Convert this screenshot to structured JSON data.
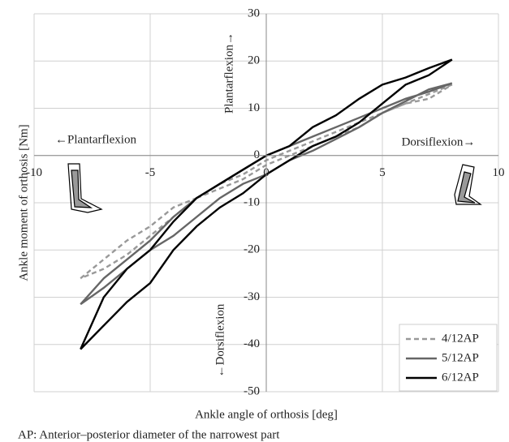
{
  "chart_data": {
    "type": "line",
    "x_label": "Ankle angle of orthosis [deg]",
    "y_label": "Ankle moment of orthosis [Nm]",
    "footnote": "AP: Anterior–posterior diameter of the narrowest part",
    "annotations": [
      "Plantarflexion→",
      "←Plantarflexion",
      "Dorsiflexion→",
      "←Dorsiflexion"
    ],
    "xlim": [
      -10,
      10
    ],
    "xticks": [
      -10,
      -5,
      0,
      5,
      10
    ],
    "ylim": [
      -50,
      30
    ],
    "yticks": [
      -50,
      -40,
      -30,
      -20,
      -10,
      0,
      10,
      20,
      30
    ],
    "grid": true,
    "legend": "lower right",
    "series": [
      {
        "name": "4/12AP",
        "color": "#999999",
        "dashed": true,
        "x": [
          -8,
          -7,
          -6,
          -5,
          -4,
          -3,
          -2,
          -1,
          0,
          1,
          2,
          3,
          4,
          5,
          6,
          7,
          8,
          7,
          6,
          5,
          4,
          3,
          2,
          1,
          0,
          -1,
          -2,
          -3,
          -4,
          -5,
          -6,
          -7,
          -8
        ],
        "values": [
          -26,
          -22,
          -18,
          -15,
          -11,
          -9,
          -6,
          -4,
          -1,
          1,
          3,
          5,
          7,
          9,
          11,
          12,
          15,
          13,
          11,
          9,
          6,
          4,
          2,
          0,
          -2,
          -5,
          -7,
          -9,
          -13,
          -17,
          -21,
          -24,
          -26
        ]
      },
      {
        "name": "5/12AP",
        "color": "#666666",
        "dashed": false,
        "x": [
          -8,
          -7,
          -6,
          -5,
          -4,
          -3,
          -2,
          -1,
          0,
          1,
          2,
          3,
          4,
          5,
          6,
          7,
          8,
          7,
          6,
          5,
          4,
          3,
          2,
          1,
          0,
          -1,
          -2,
          -3,
          -4,
          -5,
          -6,
          -7,
          -8
        ],
        "values": [
          -31.5,
          -26,
          -22,
          -18,
          -13,
          -9,
          -6,
          -3,
          0,
          2,
          4,
          6,
          8,
          10,
          12,
          13.5,
          15.3,
          14,
          11.5,
          9,
          6,
          3.5,
          1,
          -1,
          -4,
          -6,
          -9,
          -13,
          -17,
          -20,
          -24,
          -28,
          -31.5
        ]
      },
      {
        "name": "6/12AP",
        "color": "#000000",
        "dashed": false,
        "x": [
          -8,
          -7,
          -6,
          -5,
          -4,
          -3,
          -2,
          -1,
          0,
          1,
          2,
          3,
          4,
          5,
          6,
          7,
          8,
          7,
          6,
          5,
          4,
          3,
          2,
          1,
          0,
          -1,
          -2,
          -3,
          -4,
          -5,
          -6,
          -7,
          -8
        ],
        "values": [
          -41,
          -30,
          -24,
          -20,
          -14,
          -9,
          -6,
          -3,
          0,
          2,
          6,
          8.5,
          12,
          15,
          16.5,
          18.5,
          20.3,
          17,
          15,
          11,
          7,
          4,
          2,
          -1,
          -4,
          -8,
          -11,
          -15,
          -20,
          -27,
          -31,
          -36,
          -41
        ]
      }
    ]
  }
}
